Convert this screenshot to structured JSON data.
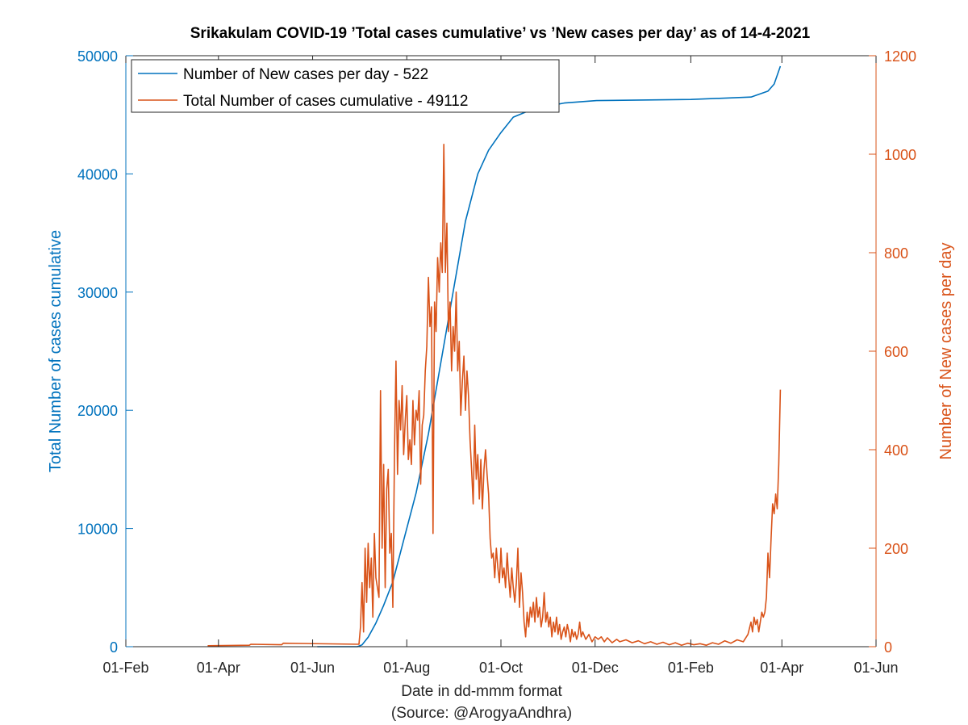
{
  "chart_data": {
    "type": "line",
    "title": "Srikakulam COVID-19 ’Total cases cumulative’ vs ’New cases per day’ as of 14-4-2021",
    "xlabel": "Date in dd-mmm format",
    "source": "(Source: @ArogyaAndhra)",
    "ylabel_left": "Total Number of cases cumulative",
    "ylabel_right": "Number of New cases per day",
    "x_ticks": [
      "01-Feb",
      "01-Apr",
      "01-Jun",
      "01-Aug",
      "01-Oct",
      "01-Dec",
      "01-Feb",
      "01-Apr",
      "01-Jun"
    ],
    "x_tick_days": [
      0,
      60,
      121,
      182,
      243,
      304,
      366,
      425,
      486
    ],
    "x_range_days": [
      0,
      486
    ],
    "ylim_left": [
      0,
      50000
    ],
    "yticks_left": [
      0,
      10000,
      20000,
      30000,
      40000,
      50000
    ],
    "ylim_right": [
      0,
      1200
    ],
    "yticks_right": [
      0,
      200,
      400,
      600,
      800,
      1000,
      1200
    ],
    "colors": {
      "cumulative": "#0072BD",
      "daily": "#D95319"
    },
    "legend": {
      "position": "top-left",
      "entries": [
        "Number of New cases per day - 522",
        "Total Number of cases cumulative - 49112"
      ]
    },
    "series": [
      {
        "name": "Total Number of cases cumulative",
        "axis": "left",
        "color": "#0072BD",
        "points": [
          [
            124,
            0
          ],
          [
            150,
            0
          ],
          [
            153,
            150
          ],
          [
            157,
            800
          ],
          [
            162,
            2000
          ],
          [
            167,
            3500
          ],
          [
            173,
            5500
          ],
          [
            180,
            9000
          ],
          [
            188,
            13000
          ],
          [
            196,
            18000
          ],
          [
            204,
            24000
          ],
          [
            212,
            30000
          ],
          [
            220,
            36000
          ],
          [
            228,
            40000
          ],
          [
            235,
            42000
          ],
          [
            243,
            43500
          ],
          [
            251,
            44800
          ],
          [
            264,
            45500
          ],
          [
            284,
            46000
          ],
          [
            305,
            46200
          ],
          [
            366,
            46300
          ],
          [
            405,
            46500
          ],
          [
            416,
            47000
          ],
          [
            420,
            47600
          ],
          [
            424,
            49112
          ]
        ]
      },
      {
        "name": "Number of New cases per day",
        "axis": "right",
        "color": "#D95319",
        "points": [
          [
            53,
            2
          ],
          [
            80,
            3
          ],
          [
            81,
            5
          ],
          [
            101,
            4
          ],
          [
            102,
            7
          ],
          [
            151,
            5
          ],
          [
            152,
            40
          ],
          [
            153,
            130
          ],
          [
            154,
            30
          ],
          [
            155,
            200
          ],
          [
            156,
            90
          ],
          [
            157,
            210
          ],
          [
            158,
            120
          ],
          [
            159,
            180
          ],
          [
            160,
            60
          ],
          [
            161,
            230
          ],
          [
            162,
            140
          ],
          [
            164,
            100
          ],
          [
            165,
            520
          ],
          [
            166,
            200
          ],
          [
            167,
            370
          ],
          [
            168,
            120
          ],
          [
            169,
            320
          ],
          [
            170,
            360
          ],
          [
            171,
            190
          ],
          [
            172,
            230
          ],
          [
            173,
            80
          ],
          [
            174,
            390
          ],
          [
            175,
            580
          ],
          [
            176,
            350
          ],
          [
            177,
            500
          ],
          [
            178,
            440
          ],
          [
            179,
            530
          ],
          [
            180,
            390
          ],
          [
            181,
            460
          ],
          [
            182,
            510
          ],
          [
            183,
            380
          ],
          [
            184,
            420
          ],
          [
            185,
            370
          ],
          [
            186,
            500
          ],
          [
            187,
            410
          ],
          [
            188,
            480
          ],
          [
            189,
            460
          ],
          [
            190,
            520
          ],
          [
            191,
            330
          ],
          [
            192,
            450
          ],
          [
            193,
            470
          ],
          [
            194,
            560
          ],
          [
            195,
            610
          ],
          [
            196,
            750
          ],
          [
            197,
            650
          ],
          [
            198,
            690
          ],
          [
            199,
            230
          ],
          [
            200,
            700
          ],
          [
            201,
            640
          ],
          [
            202,
            790
          ],
          [
            203,
            720
          ],
          [
            204,
            820
          ],
          [
            205,
            760
          ],
          [
            206,
            1020
          ],
          [
            207,
            760
          ],
          [
            208,
            860
          ],
          [
            209,
            640
          ],
          [
            210,
            700
          ],
          [
            211,
            560
          ],
          [
            212,
            650
          ],
          [
            213,
            600
          ],
          [
            214,
            720
          ],
          [
            215,
            560
          ],
          [
            216,
            620
          ],
          [
            217,
            470
          ],
          [
            218,
            540
          ],
          [
            219,
            590
          ],
          [
            220,
            480
          ],
          [
            221,
            560
          ],
          [
            222,
            510
          ],
          [
            223,
            420
          ],
          [
            224,
            360
          ],
          [
            225,
            290
          ],
          [
            226,
            450
          ],
          [
            227,
            340
          ],
          [
            228,
            390
          ],
          [
            229,
            300
          ],
          [
            230,
            380
          ],
          [
            231,
            280
          ],
          [
            232,
            360
          ],
          [
            233,
            400
          ],
          [
            234,
            350
          ],
          [
            235,
            310
          ],
          [
            236,
            220
          ],
          [
            237,
            180
          ],
          [
            238,
            190
          ],
          [
            239,
            140
          ],
          [
            240,
            200
          ],
          [
            241,
            160
          ],
          [
            242,
            130
          ],
          [
            243,
            200
          ],
          [
            244,
            140
          ],
          [
            245,
            160
          ],
          [
            246,
            120
          ],
          [
            247,
            190
          ],
          [
            248,
            140
          ],
          [
            249,
            100
          ],
          [
            250,
            160
          ],
          [
            251,
            120
          ],
          [
            252,
            90
          ],
          [
            253,
            130
          ],
          [
            254,
            200
          ],
          [
            255,
            80
          ],
          [
            256,
            150
          ],
          [
            257,
            110
          ],
          [
            258,
            50
          ],
          [
            259,
            20
          ],
          [
            260,
            70
          ],
          [
            261,
            40
          ],
          [
            262,
            80
          ],
          [
            263,
            60
          ],
          [
            264,
            90
          ],
          [
            265,
            50
          ],
          [
            266,
            100
          ],
          [
            267,
            60
          ],
          [
            268,
            80
          ],
          [
            269,
            40
          ],
          [
            270,
            60
          ],
          [
            271,
            110
          ],
          [
            272,
            50
          ],
          [
            273,
            70
          ],
          [
            274,
            40
          ],
          [
            275,
            60
          ],
          [
            276,
            20
          ],
          [
            277,
            50
          ],
          [
            278,
            30
          ],
          [
            279,
            60
          ],
          [
            280,
            25
          ],
          [
            281,
            45
          ],
          [
            282,
            15
          ],
          [
            283,
            30
          ],
          [
            284,
            40
          ],
          [
            285,
            20
          ],
          [
            286,
            45
          ],
          [
            287,
            30
          ],
          [
            288,
            10
          ],
          [
            289,
            35
          ],
          [
            290,
            20
          ],
          [
            291,
            30
          ],
          [
            292,
            15
          ],
          [
            293,
            25
          ],
          [
            294,
            50
          ],
          [
            295,
            20
          ],
          [
            296,
            30
          ],
          [
            298,
            15
          ],
          [
            300,
            25
          ],
          [
            302,
            10
          ],
          [
            304,
            20
          ],
          [
            306,
            15
          ],
          [
            308,
            20
          ],
          [
            310,
            10
          ],
          [
            312,
            18
          ],
          [
            315,
            8
          ],
          [
            318,
            15
          ],
          [
            320,
            10
          ],
          [
            324,
            14
          ],
          [
            328,
            8
          ],
          [
            332,
            12
          ],
          [
            336,
            6
          ],
          [
            340,
            10
          ],
          [
            344,
            5
          ],
          [
            348,
            9
          ],
          [
            352,
            4
          ],
          [
            356,
            8
          ],
          [
            360,
            3
          ],
          [
            364,
            7
          ],
          [
            368,
            4
          ],
          [
            372,
            6
          ],
          [
            376,
            3
          ],
          [
            380,
            8
          ],
          [
            384,
            5
          ],
          [
            388,
            12
          ],
          [
            392,
            7
          ],
          [
            396,
            14
          ],
          [
            400,
            10
          ],
          [
            403,
            25
          ],
          [
            405,
            50
          ],
          [
            406,
            30
          ],
          [
            407,
            60
          ],
          [
            408,
            45
          ],
          [
            409,
            55
          ],
          [
            410,
            30
          ],
          [
            411,
            50
          ],
          [
            412,
            70
          ],
          [
            413,
            60
          ],
          [
            414,
            70
          ],
          [
            415,
            100
          ],
          [
            416,
            190
          ],
          [
            417,
            140
          ],
          [
            418,
            220
          ],
          [
            419,
            290
          ],
          [
            420,
            270
          ],
          [
            421,
            310
          ],
          [
            422,
            280
          ],
          [
            423,
            370
          ],
          [
            424,
            522
          ]
        ]
      }
    ]
  }
}
